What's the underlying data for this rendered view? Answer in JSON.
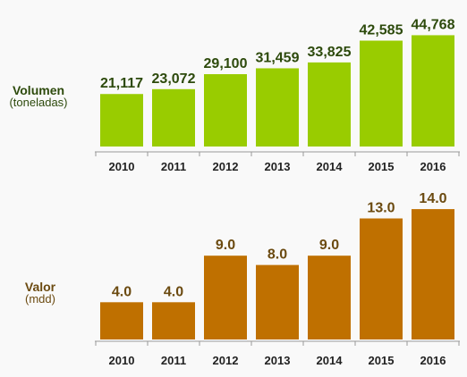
{
  "chart_data": [
    {
      "type": "bar",
      "categories": [
        "2010",
        "2011",
        "2012",
        "2013",
        "2014",
        "2015",
        "2016"
      ],
      "values": [
        21117,
        23072,
        29100,
        31459,
        33825,
        42585,
        44768
      ],
      "value_labels": [
        "21,117",
        "23,072",
        "29,100",
        "31,459",
        "33,825",
        "42,585",
        "44,768"
      ],
      "ylabel": "Volumen",
      "ylabel_sub": "(toneladas)",
      "ylim": [
        0,
        46000
      ],
      "grid": false,
      "colors": {
        "bar": "#99cc00",
        "label": "#2d4a0c",
        "axis_title": "#2d4a0c"
      }
    },
    {
      "type": "bar",
      "categories": [
        "2010",
        "2011",
        "2012",
        "2013",
        "2014",
        "2015",
        "2016"
      ],
      "values": [
        4.0,
        4.0,
        9.0,
        8.0,
        9.0,
        13.0,
        14.0
      ],
      "value_labels": [
        "4.0",
        "4.0",
        "9.0",
        "8.0",
        "9.0",
        "13.0",
        "14.0"
      ],
      "ylabel": "Valor",
      "ylabel_sub": "(mdd)",
      "ylim": [
        0,
        14.2
      ],
      "grid": false,
      "colors": {
        "bar": "#bf7000",
        "label": "#6b4a10",
        "axis_title": "#6b4a10"
      }
    }
  ]
}
